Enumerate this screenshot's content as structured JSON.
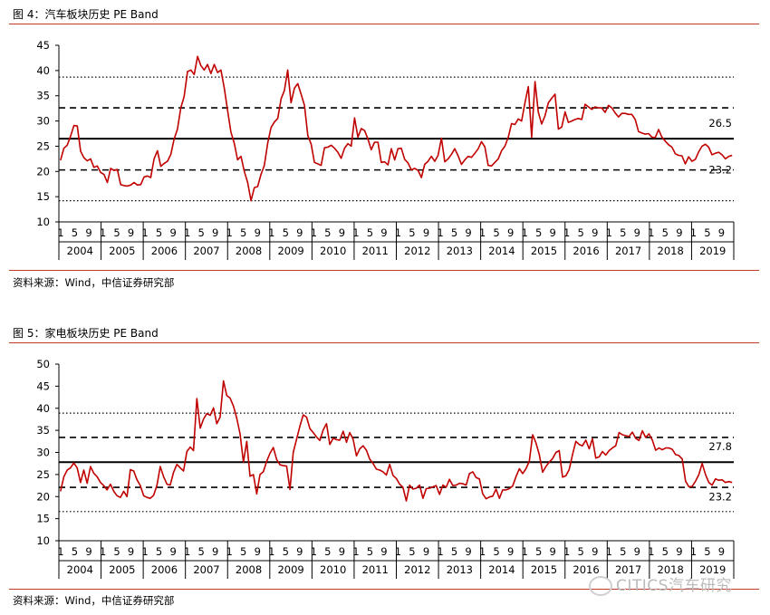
{
  "figures": [
    {
      "title": "图 4：汽车板块历史 PE Band",
      "source": "资料来源：Wind，中信证券研究部"
    },
    {
      "title": "图 5：家电板块历史 PE Band",
      "source": "资料来源：Wind，中信证券研究部"
    }
  ],
  "watermark": "CITICS汽车研究",
  "chart_data": [
    {
      "type": "line",
      "title": "汽车板块历史 PE Band",
      "years": [
        "2004",
        "2005",
        "2006",
        "2007",
        "2008",
        "2009",
        "2010",
        "2011",
        "2012",
        "2013",
        "2014",
        "2015",
        "2016",
        "2017",
        "2018",
        "2019"
      ],
      "month_ticks": [
        "1",
        "5",
        "9"
      ],
      "ylim": [
        10,
        45
      ],
      "yticks": [
        10,
        15,
        20,
        25,
        30,
        35,
        40,
        45
      ],
      "bands": [
        {
          "value": 38.7,
          "style": "dotted"
        },
        {
          "value": 32.6,
          "style": "dashed"
        },
        {
          "value": 26.5,
          "style": "solid",
          "label": "26.5"
        },
        {
          "value": 20.3,
          "style": "dashed"
        },
        {
          "value": 14.2,
          "style": "dotted"
        }
      ],
      "current_label": "23.2",
      "series": [
        {
          "color": "#c00000",
          "values": [
            22.2,
            24.6,
            25.2,
            27.0,
            29.1,
            29.0,
            24.0,
            22.7,
            22.1,
            22.5,
            20.8,
            21.1,
            19.8,
            19.4,
            17.8,
            20.6,
            20.2,
            20.4,
            17.4,
            17.2,
            17.1,
            17.3,
            17.8,
            17.3,
            17.4,
            18.9,
            19.1,
            18.8,
            22.5,
            24.1,
            21.0,
            21.6,
            22.0,
            23.4,
            26.4,
            28.4,
            32.6,
            34.9,
            39.8,
            40.1,
            39.2,
            42.8,
            41.0,
            40.1,
            41.2,
            39.4,
            41.2,
            39.6,
            40.1,
            36.5,
            32.0,
            27.8,
            25.6,
            22.3,
            23.0,
            20.0,
            17.8,
            14.2,
            16.8,
            17.0,
            19.4,
            21.2,
            25.6,
            28.7,
            29.8,
            30.5,
            34.4,
            36.0,
            40.1,
            33.6,
            36.5,
            37.4,
            35.3,
            33.1,
            27.1,
            25.4,
            21.8,
            21.5,
            21.2,
            24.7,
            24.8,
            25.2,
            24.6,
            23.8,
            22.6,
            24.6,
            25.5,
            25.0,
            30.6,
            26.8,
            28.5,
            28.1,
            26.4,
            24.3,
            25.8,
            25.8,
            21.8,
            21.9,
            21.3,
            24.5,
            22.3,
            24.5,
            24.6,
            22.4,
            21.7,
            20.3,
            20.6,
            20.2,
            18.8,
            21.4,
            22.0,
            23.0,
            22.0,
            23.2,
            26.6,
            21.9,
            22.5,
            23.4,
            24.5,
            23.1,
            21.4,
            22.3,
            23.0,
            22.8,
            23.6,
            24.5,
            25.9,
            24.9,
            21.2,
            21.1,
            21.8,
            22.5,
            24.1,
            25.0,
            26.8,
            29.5,
            29.3,
            30.4,
            30.0,
            33.6,
            36.8,
            26.8,
            37.8,
            31.8,
            29.4,
            31.0,
            33.6,
            34.5,
            35.3,
            28.4,
            28.8,
            31.8,
            29.7,
            30.0,
            30.3,
            30.5,
            30.3,
            33.3,
            32.8,
            32.3,
            32.8,
            32.6,
            32.6,
            31.7,
            33.1,
            32.6,
            31.6,
            30.8,
            31.5,
            31.5,
            31.3,
            31.3,
            30.3,
            27.9,
            27.6,
            27.4,
            27.5,
            26.8,
            26.7,
            28.3,
            26.8,
            26.0,
            25.3,
            24.8,
            23.5,
            23.2,
            23.1,
            21.5,
            22.9,
            22.0,
            22.4,
            23.9,
            25.0,
            25.4,
            24.8,
            23.3,
            23.6,
            23.8,
            23.3,
            22.5,
            23.0,
            23.2
          ]
        }
      ]
    },
    {
      "type": "line",
      "title": "家电板块历史 PE Band",
      "years": [
        "2004",
        "2005",
        "2006",
        "2007",
        "2008",
        "2009",
        "2010",
        "2011",
        "2012",
        "2013",
        "2014",
        "2015",
        "2016",
        "2017",
        "2018",
        "2019"
      ],
      "month_ticks": [
        "1",
        "5",
        "9"
      ],
      "ylim": [
        10,
        50
      ],
      "yticks": [
        10,
        15,
        20,
        25,
        30,
        35,
        40,
        45,
        50
      ],
      "bands": [
        {
          "value": 38.9,
          "style": "dotted"
        },
        {
          "value": 33.4,
          "style": "dashed"
        },
        {
          "value": 27.8,
          "style": "solid",
          "label": "27.8"
        },
        {
          "value": 22.1,
          "style": "dashed"
        },
        {
          "value": 16.6,
          "style": "dotted"
        }
      ],
      "current_label": "23.2",
      "series": [
        {
          "color": "#c00000",
          "values": [
            21.2,
            24.5,
            26.0,
            26.5,
            27.6,
            26.5,
            23.2,
            26.0,
            23.0,
            26.8,
            25.3,
            24.5,
            23.2,
            22.5,
            21.5,
            22.8,
            21.2,
            20.2,
            19.8,
            21.2,
            20.0,
            26.1,
            25.8,
            23.8,
            22.5,
            20.2,
            19.8,
            19.6,
            20.3,
            22.6,
            26.8,
            24.5,
            22.8,
            22.6,
            25.5,
            27.3,
            26.5,
            25.8,
            30.2,
            31.2,
            30.4,
            42.2,
            35.5,
            37.5,
            38.8,
            38.4,
            40.1,
            36.5,
            38.0,
            46.2,
            42.9,
            42.3,
            40.5,
            37.8,
            34.2,
            27.8,
            32.5,
            24.6,
            25.0,
            20.6,
            25.0,
            25.6,
            28.0,
            29.8,
            31.1,
            28.4,
            27.2,
            27.0,
            26.9,
            21.6,
            30.0,
            33.0,
            36.0,
            38.5,
            38.0,
            35.4,
            34.5,
            33.5,
            32.7,
            35.1,
            36.5,
            31.8,
            33.2,
            32.9,
            32.8,
            34.8,
            32.3,
            34.5,
            33.0,
            29.2,
            30.8,
            31.5,
            30.5,
            28.5,
            27.5,
            26.2,
            26.0,
            25.6,
            24.9,
            27.3,
            24.8,
            24.1,
            22.8,
            22.1,
            19.0,
            22.6,
            21.7,
            21.9,
            22.6,
            19.6,
            21.8,
            21.9,
            22.2,
            22.5,
            20.5,
            22.6,
            22.1,
            23.9,
            22.5,
            22.6,
            23.0,
            22.9,
            22.6,
            25.2,
            25.6,
            24.3,
            24.0,
            20.6,
            19.5,
            19.9,
            20.1,
            21.7,
            19.6,
            21.5,
            21.5,
            21.8,
            22.4,
            24.5,
            26.3,
            25.2,
            26.3,
            28.0,
            34.0,
            32.2,
            29.5,
            25.5,
            26.8,
            27.8,
            28.6,
            30.0,
            30.4,
            24.4,
            24.7,
            26.1,
            29.5,
            32.5,
            31.8,
            31.5,
            32.8,
            30.8,
            33.1,
            28.7,
            29.0,
            30.2,
            29.4,
            30.4,
            31.0,
            31.5,
            34.5,
            34.0,
            33.8,
            33.6,
            34.6,
            33.2,
            32.7,
            34.9,
            33.4,
            34.2,
            32.8,
            30.5,
            31.0,
            30.6,
            31.0,
            31.0,
            30.7,
            29.5,
            29.3,
            28.5,
            23.5,
            22.2,
            22.3,
            23.5,
            25.0,
            27.5,
            25.0,
            23.2,
            22.6,
            24.0,
            23.7,
            23.8,
            23.2,
            23.4,
            23.2
          ]
        }
      ]
    }
  ]
}
